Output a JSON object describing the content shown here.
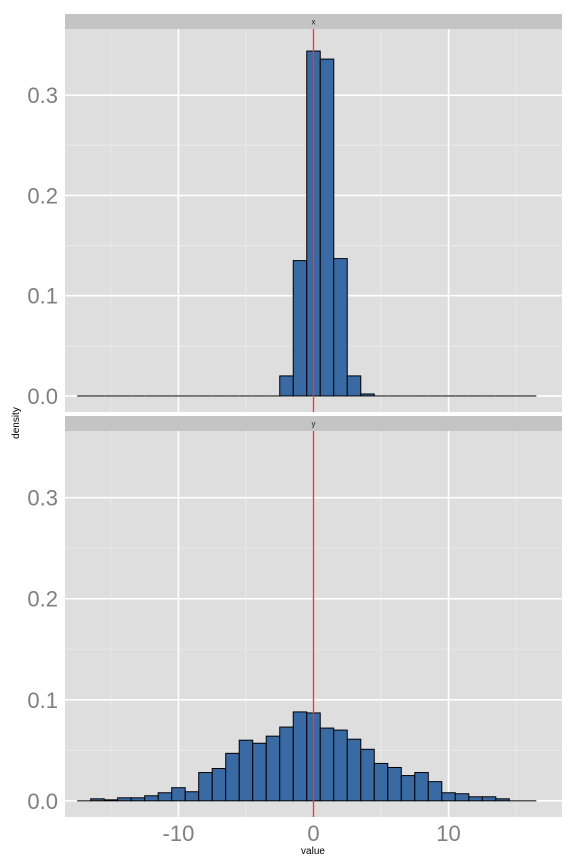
{
  "chart_data": {
    "type": "bar",
    "xlabel": "value",
    "ylabel": "density",
    "xlim": [
      -18.4,
      18.4
    ],
    "ylim": [
      -0.016,
      0.366
    ],
    "x_ticks": [
      -10,
      0,
      10
    ],
    "x_tick_labels": [
      "-10",
      "0",
      "10"
    ],
    "y_ticks": [
      0,
      0.1,
      0.2,
      0.3
    ],
    "y_tick_labels": [
      "0.0",
      "0.1",
      "0.2",
      "0.3"
    ],
    "grid": true,
    "vline_x": 0,
    "colors": {
      "bar_fill": "#3a6aa4",
      "bar_stroke": "#000000",
      "vline": "#e8383b",
      "panel_bg": "#dedede",
      "strip_bg": "#c4c4c4",
      "grid_major": "#ffffff",
      "grid_minor": "#ececec"
    },
    "bin_width": 1,
    "facets": [
      {
        "label": "x",
        "bins": [
          -17,
          -16,
          -15,
          -14,
          -13,
          -12,
          -11,
          -10,
          -9,
          -8,
          -7,
          -6,
          -5,
          -4,
          -3,
          -2,
          -1,
          0,
          1,
          2,
          3,
          4,
          5,
          6,
          7,
          8,
          9,
          10,
          11,
          12,
          13,
          14,
          15,
          16
        ],
        "values": [
          0,
          0,
          0,
          0,
          0,
          0,
          0,
          0,
          0,
          0,
          0,
          0,
          0,
          0,
          0,
          0.02,
          0.135,
          0.344,
          0.336,
          0.137,
          0.02,
          0.002,
          0,
          0,
          0,
          0,
          0,
          0,
          0,
          0,
          0,
          0,
          0,
          0
        ]
      },
      {
        "label": "y",
        "bins": [
          -17,
          -16,
          -15,
          -14,
          -13,
          -12,
          -11,
          -10,
          -9,
          -8,
          -7,
          -6,
          -5,
          -4,
          -3,
          -2,
          -1,
          0,
          1,
          2,
          3,
          4,
          5,
          6,
          7,
          8,
          9,
          10,
          11,
          12,
          13,
          14,
          15,
          16
        ],
        "values": [
          0,
          0.002,
          0.001,
          0.003,
          0.003,
          0.005,
          0.008,
          0.013,
          0.009,
          0.028,
          0.032,
          0.047,
          0.06,
          0.057,
          0.064,
          0.073,
          0.088,
          0.087,
          0.072,
          0.07,
          0.061,
          0.051,
          0.037,
          0.033,
          0.025,
          0.028,
          0.019,
          0.008,
          0.007,
          0.004,
          0.004,
          0.002,
          0,
          0
        ]
      }
    ]
  }
}
